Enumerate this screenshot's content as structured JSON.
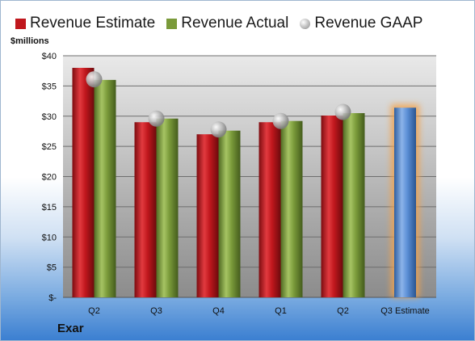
{
  "chart_data": {
    "type": "bar",
    "categories": [
      "Q2",
      "Q3",
      "Q4",
      "Q1",
      "Q2",
      "Q3 Estimate"
    ],
    "series": [
      {
        "name": "Revenue Estimate",
        "values": [
          38.0,
          29.0,
          27.0,
          29.0,
          30.1,
          31.4
        ]
      },
      {
        "name": "Revenue Actual",
        "values": [
          36.0,
          29.6,
          27.6,
          29.2,
          30.5,
          null
        ]
      },
      {
        "name": "Revenue GAAP",
        "values": [
          36.1,
          29.6,
          27.8,
          29.2,
          30.7,
          null
        ]
      }
    ],
    "ylabel": "$millions",
    "yticks": [
      "$-",
      "$5",
      "$10",
      "$15",
      "$20",
      "$25",
      "$30",
      "$35",
      "$40"
    ],
    "ylim": [
      0,
      40
    ],
    "grid": true,
    "legend_position": "top",
    "highlighted_category": "Q3 Estimate",
    "colors": {
      "estimate": "#c0171d",
      "actual": "#7a9a3a",
      "gaap": "#b9b9b9",
      "highlight_bar": "#5b8fd6",
      "highlight_glow": "#f4a24a"
    }
  },
  "company": "Exar"
}
